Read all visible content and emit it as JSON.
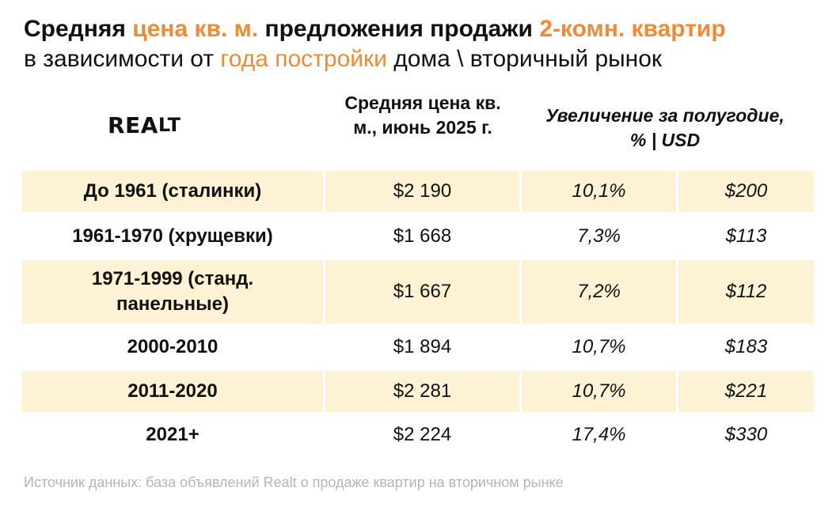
{
  "title": {
    "line1_part1": "Средняя ",
    "line1_accent1": "цена кв. м.",
    "line1_part2": " предложения продажи ",
    "line1_accent2": "2-комн. квартир",
    "line2_part1": "в зависимости от ",
    "line2_accent": "года постройки",
    "line2_part2": " дома \\ вторичный рынок"
  },
  "logo": {
    "text_main": "REA",
    "text_small": "LT"
  },
  "headers": {
    "price": "Средняя цена кв. м., июнь 2025 г.",
    "increase": "Увеличение за полугодие, % | USD"
  },
  "colors": {
    "accent": "#f08a33",
    "shade": "#fdf2d4",
    "source": "#b5b5b5"
  },
  "chart_data": {
    "type": "table",
    "columns": [
      "",
      "Средняя цена кв. м., июнь 2025 г.",
      "Увеличение за полугодие, %",
      "USD"
    ],
    "rows": [
      {
        "period": "До 1961 (сталинки)",
        "price": "$2 190",
        "pct": "10,1%",
        "usd": "$200"
      },
      {
        "period": "1961-1970 (хрущевки)",
        "price": "$1 668",
        "pct": "7,3%",
        "usd": "$113"
      },
      {
        "period": "1971-1999 (станд. панельные)",
        "price": "$1 667",
        "pct": "7,2%",
        "usd": "$112"
      },
      {
        "period": "2000-2010",
        "price": "$1 894",
        "pct": "10,7%",
        "usd": "$183"
      },
      {
        "period": "2011-2020",
        "price": "$2 281",
        "pct": "10,7%",
        "usd": "$221"
      },
      {
        "period": "2021+",
        "price": "$2 224",
        "pct": "17,4%",
        "usd": "$330"
      }
    ]
  },
  "source": "Источник данных: база объявлений Realt о продаже квартир на вторичном рынке"
}
